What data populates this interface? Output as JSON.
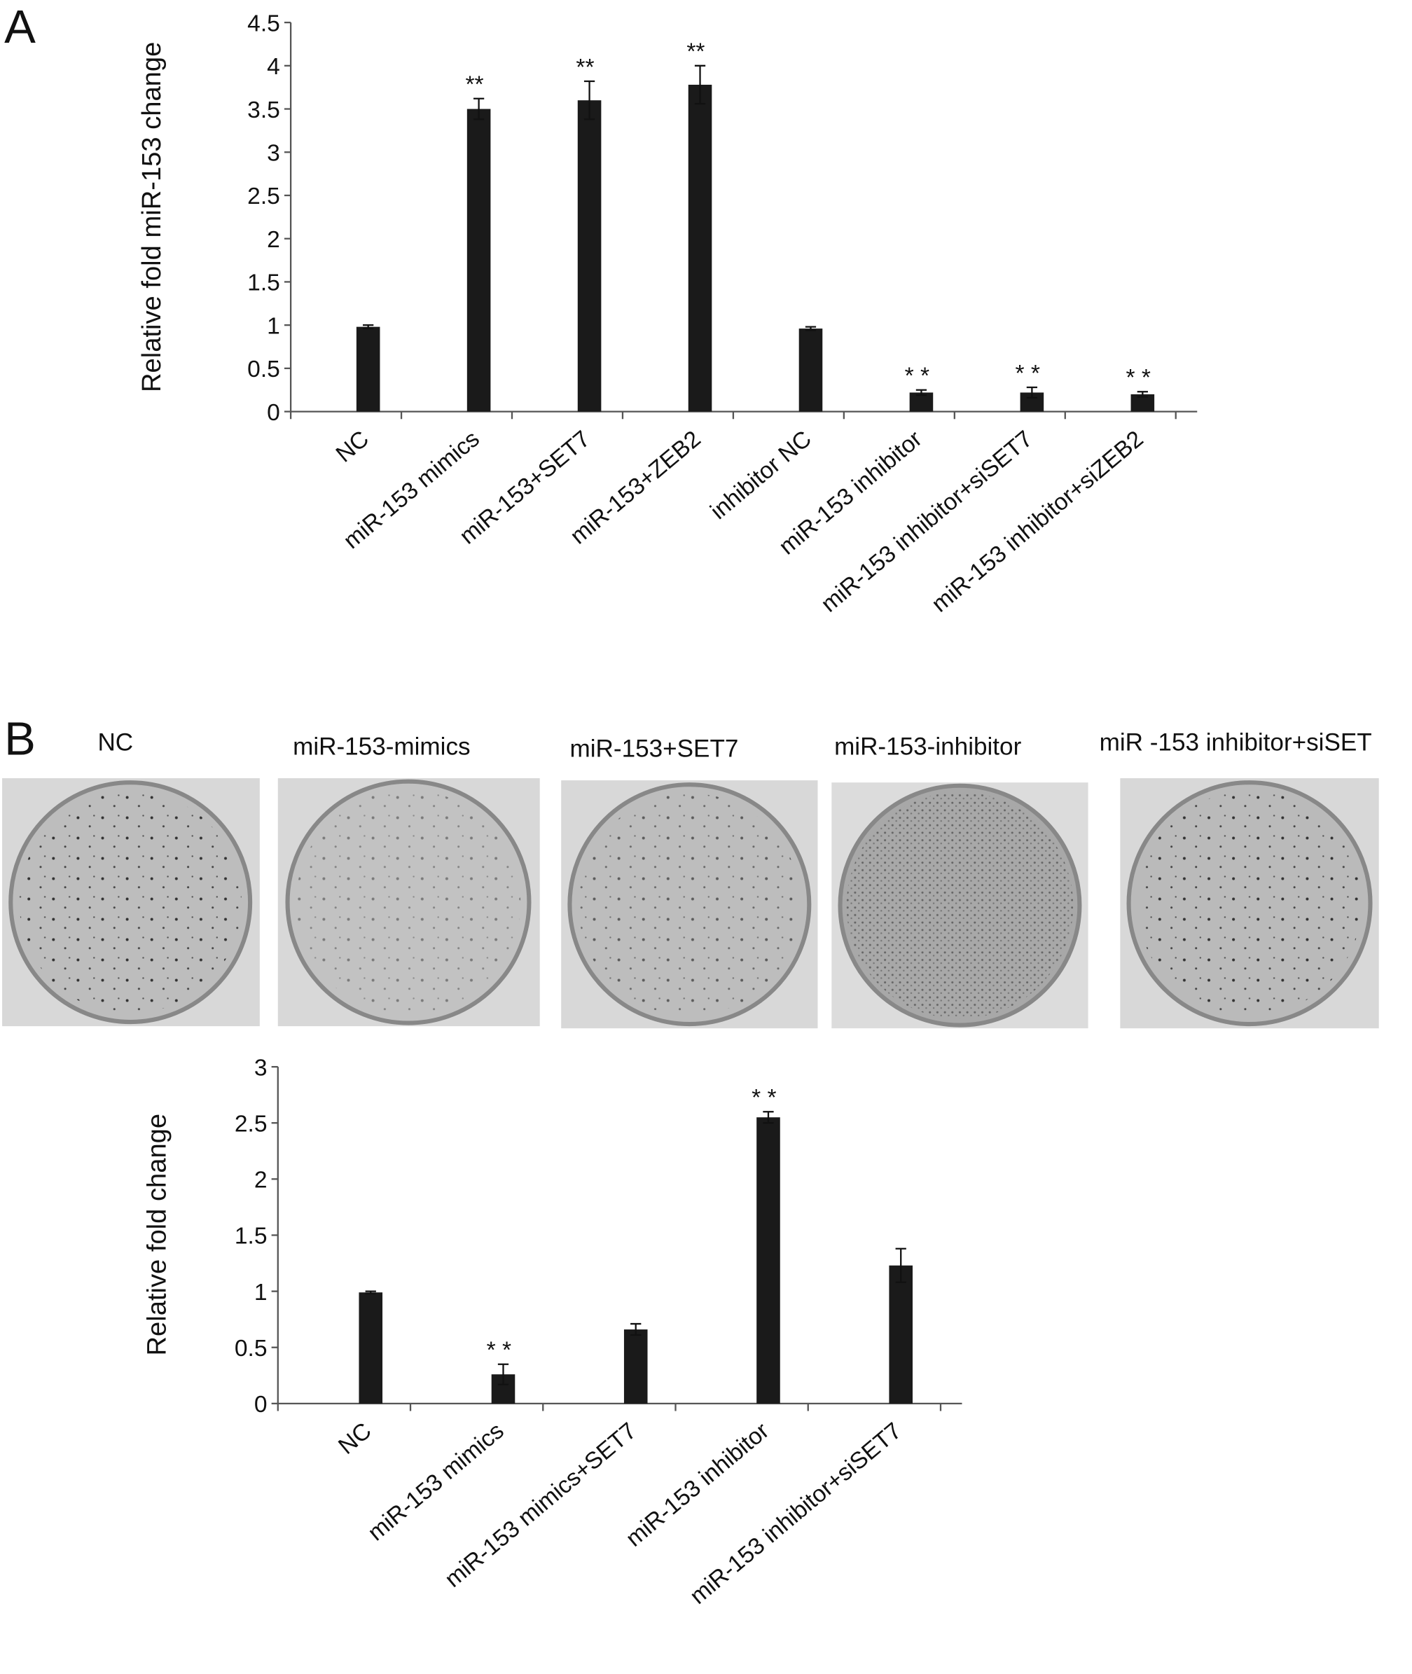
{
  "panels": [
    "A",
    "B"
  ],
  "photo_labels": [
    "NC",
    "miR-153-mimics",
    "miR-153+SET7",
    "miR-153-inhibitor",
    "miR -153 inhibitor+siSET"
  ],
  "chart_data": [
    {
      "type": "bar",
      "y_label": "Relative fold miR-153 change",
      "categories": [
        "NC",
        "miR-153 mimics",
        "miR-153+SET7",
        "miR-153+ZEB2",
        "inhibitor NC",
        "miR-153 inhibitor",
        "miR-153 inhibitor+siSET7",
        "miR-153 inhibitor+siZEB2"
      ],
      "values": [
        0.98,
        3.5,
        3.6,
        3.78,
        0.96,
        0.22,
        0.22,
        0.2
      ],
      "errors": [
        0.02,
        0.12,
        0.22,
        0.22,
        0.02,
        0.03,
        0.06,
        0.03
      ],
      "significance": [
        null,
        "**",
        "**",
        "**",
        null,
        "* *",
        "* *",
        "* *"
      ],
      "color": "#1a1a1a",
      "ylim": [
        0,
        4.5
      ],
      "yticks": [
        0,
        0.5,
        1,
        1.5,
        2,
        2.5,
        3,
        3.5,
        4,
        4.5
      ]
    },
    {
      "type": "bar",
      "y_label": "Relative fold change",
      "categories": [
        "NC",
        "miR-153 mimics",
        "miR-153 mimics+SET7",
        "miR-153 inhibitor",
        "miR-153 inhibitor+siSET7"
      ],
      "values": [
        0.99,
        0.26,
        0.66,
        2.55,
        1.23
      ],
      "errors": [
        0.01,
        0.09,
        0.05,
        0.05,
        0.15
      ],
      "significance": [
        null,
        "*   *",
        null,
        "*   *",
        null
      ],
      "color": "#1a1a1a",
      "ylim": [
        0,
        3
      ],
      "yticks": [
        0,
        0.5,
        1,
        1.5,
        2,
        2.5,
        3
      ]
    }
  ]
}
